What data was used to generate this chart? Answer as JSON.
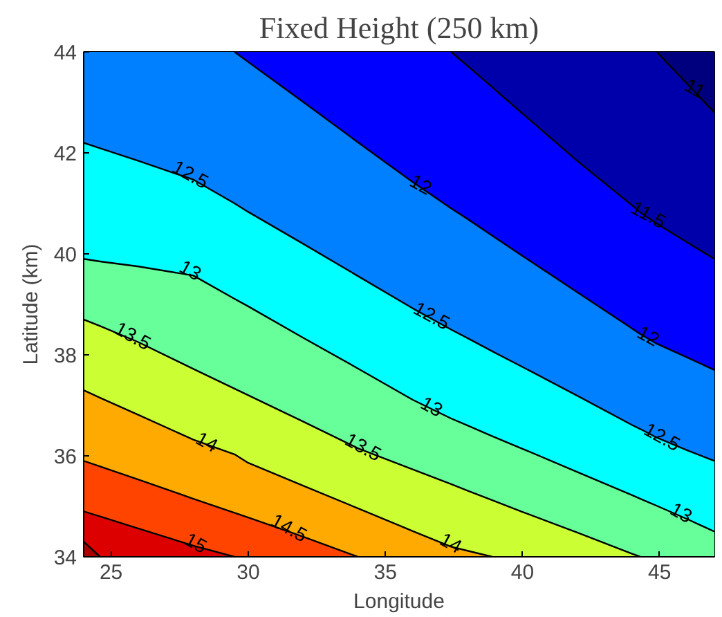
{
  "chart_data": {
    "type": "area",
    "title": "Fixed Height (250 km)",
    "xlabel": "Longitude",
    "ylabel": "Latitude (km)",
    "xlim": [
      24,
      47
    ],
    "ylim": [
      34,
      44
    ],
    "xticks": [
      25,
      30,
      35,
      40,
      45
    ],
    "yticks": [
      34,
      36,
      38,
      40,
      42,
      44
    ],
    "x": [
      24,
      24.6,
      26,
      28,
      29.5,
      30,
      32,
      34,
      36,
      37.4,
      38,
      38.9,
      40,
      42,
      44,
      44.3,
      44.9,
      46,
      47
    ],
    "series": [
      {
        "color": "#00007f",
        "values": [
          44,
          44,
          44,
          44,
          44,
          44,
          44,
          44,
          44,
          44,
          44,
          44,
          44,
          44,
          44,
          44,
          44,
          44,
          44
        ]
      },
      {
        "color": "#0000aa",
        "values": [
          44,
          44,
          44,
          44,
          44,
          44,
          44,
          44,
          44,
          44,
          44,
          44,
          44,
          44,
          44,
          44,
          44,
          43.37,
          42.8
        ]
      },
      {
        "color": "#0000ff",
        "values": [
          44,
          44,
          44,
          44,
          44,
          44,
          44,
          44,
          44,
          44,
          43.72,
          43.3,
          42.78,
          41.84,
          40.96,
          40.82,
          40.6,
          40.23,
          39.9
        ]
      },
      {
        "color": "#0080ff",
        "values": [
          44,
          44,
          44,
          44,
          44,
          43.8,
          43.01,
          42.21,
          41.42,
          40.9,
          40.69,
          40.36,
          39.96,
          39.24,
          38.52,
          38.41,
          38.22,
          37.95,
          37.7
        ]
      },
      {
        "color": "#00ffff",
        "values": [
          42.2,
          42.09,
          41.84,
          41.47,
          41.0,
          40.83,
          40.2,
          39.56,
          38.92,
          38.5,
          38.33,
          38.07,
          37.76,
          37.19,
          36.61,
          36.53,
          36.36,
          36.11,
          35.9
        ]
      },
      {
        "color": "#66ff99",
        "values": [
          39.9,
          39.85,
          39.75,
          39.57,
          39.11,
          38.96,
          38.34,
          37.73,
          37.11,
          36.74,
          36.6,
          36.39,
          36.14,
          35.68,
          35.22,
          35.15,
          35.01,
          34.75,
          34.5
        ]
      },
      {
        "color": "#ccff33",
        "values": [
          38.7,
          38.57,
          38.25,
          37.72,
          37.33,
          37.2,
          36.68,
          36.15,
          35.73,
          35.44,
          35.31,
          35.12,
          34.89,
          34.48,
          34.06,
          34,
          34,
          34,
          34
        ]
      },
      {
        "color": "#ffaa00",
        "values": [
          37.3,
          37.15,
          36.81,
          36.32,
          36.03,
          35.86,
          35.41,
          34.96,
          34.51,
          34.2,
          34.12,
          34,
          34,
          34,
          34,
          34,
          34,
          34,
          34
        ]
      },
      {
        "color": "#ff4400",
        "values": [
          35.9,
          35.79,
          35.53,
          35.15,
          34.87,
          34.78,
          34.4,
          34,
          34,
          34,
          34,
          34,
          34,
          34,
          34,
          34,
          34,
          34,
          34
        ]
      },
      {
        "color": "#dd0000",
        "values": [
          34.9,
          34.8,
          34.56,
          34.22,
          34,
          34,
          34,
          34,
          34,
          34,
          34,
          34,
          34,
          34,
          34,
          34,
          34,
          34,
          34
        ]
      },
      {
        "color": "#aa0000",
        "values": [
          34.3,
          34,
          34,
          34,
          34,
          34,
          34,
          34,
          34,
          34,
          34,
          34,
          34,
          34,
          34,
          34,
          34,
          34,
          34
        ]
      }
    ],
    "annotations": [
      {
        "text": "11",
        "x": 46.3,
        "y": 43.2
      },
      {
        "text": "11.5",
        "x": 44.6,
        "y": 40.7
      },
      {
        "text": "12",
        "x": 36.3,
        "y": 41.3
      },
      {
        "text": "12",
        "x": 44.6,
        "y": 38.3
      },
      {
        "text": "12.5",
        "x": 27.9,
        "y": 41.5
      },
      {
        "text": "12.5",
        "x": 36.7,
        "y": 38.7
      },
      {
        "text": "12.5",
        "x": 45.1,
        "y": 36.3
      },
      {
        "text": "13",
        "x": 27.9,
        "y": 39.6
      },
      {
        "text": "13",
        "x": 36.7,
        "y": 36.9
      },
      {
        "text": "13",
        "x": 45.8,
        "y": 34.8
      },
      {
        "text": "13.5",
        "x": 25.8,
        "y": 38.3
      },
      {
        "text": "13.5",
        "x": 34.2,
        "y": 36.1
      },
      {
        "text": "14",
        "x": 28.5,
        "y": 36.2
      },
      {
        "text": "14",
        "x": 37.4,
        "y": 34.2
      },
      {
        "text": "14.5",
        "x": 31.5,
        "y": 34.5
      },
      {
        "text": "15",
        "x": 28.1,
        "y": 34.2
      }
    ]
  }
}
